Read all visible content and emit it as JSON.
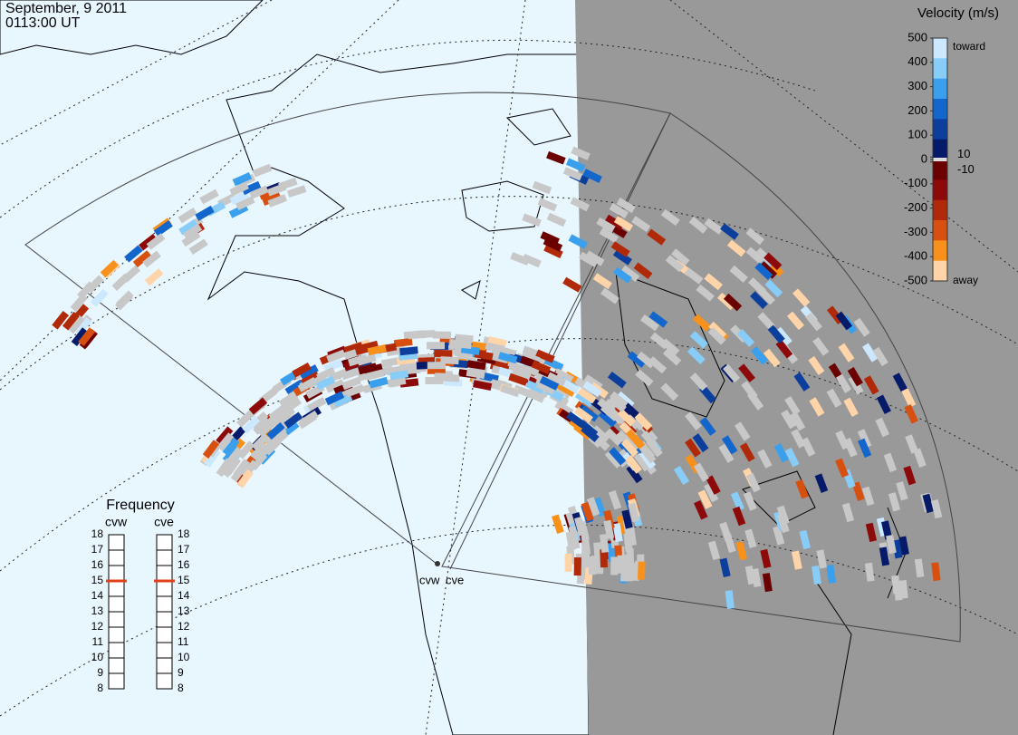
{
  "header": {
    "date": "September, 9 2011",
    "time": "0113:00 UT"
  },
  "velocity_scale": {
    "title": "Velocity (m/s)",
    "lim": [
      -500,
      500
    ],
    "ticks": [
      500,
      400,
      300,
      200,
      100,
      10,
      0,
      -10,
      -100,
      -200,
      -300,
      -400,
      -500
    ],
    "toward": "toward",
    "away": "away",
    "colors": [
      "#cce8ff",
      "#88ccf8",
      "#3aa0ee",
      "#1266cc",
      "#0c3e9c",
      "#061a6a",
      "#6a0000",
      "#8c0a0a",
      "#b02a0a",
      "#d85010",
      "#f8901c",
      "#ffd4a8"
    ],
    "ground_scatter_color": "#c8c8c8"
  },
  "frequency": {
    "title": "Frequency",
    "lim": [
      8,
      18
    ],
    "ticks": [
      8,
      9,
      10,
      11,
      12,
      13,
      14,
      15,
      16,
      17,
      18
    ],
    "radars": [
      {
        "name": "cvw",
        "value": 15
      },
      {
        "name": "cve",
        "value": 15
      }
    ],
    "marker_color": "#e0401a"
  },
  "stations": [
    "cvw",
    "cve"
  ]
}
